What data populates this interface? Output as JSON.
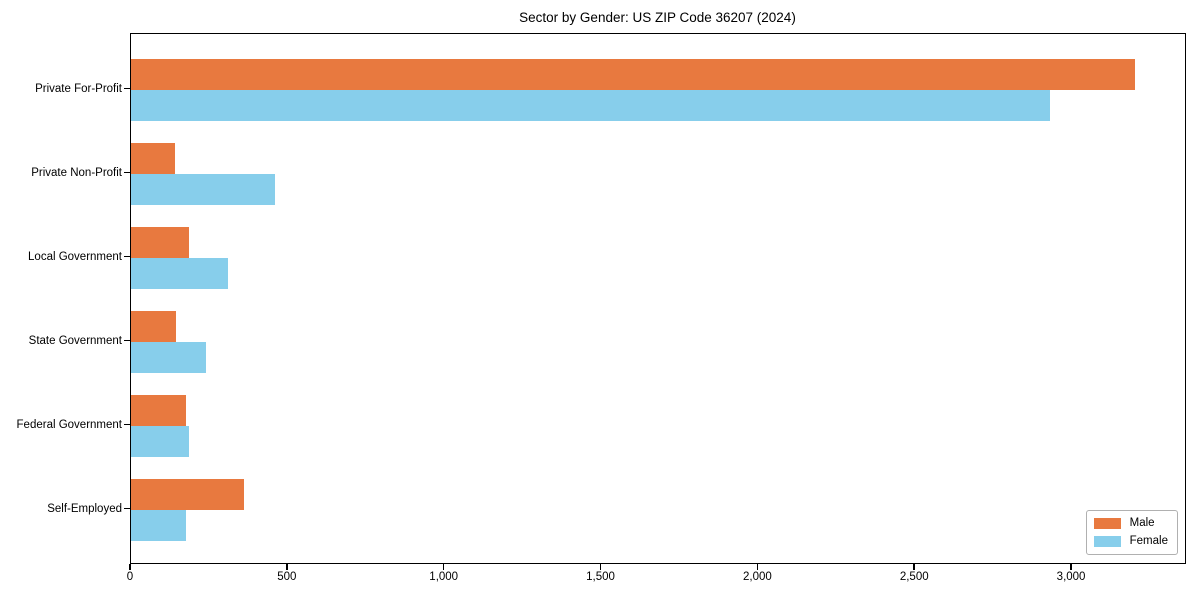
{
  "chart_data": {
    "type": "bar",
    "orientation": "horizontal",
    "title": "Sector by Gender: US ZIP Code 36207 (2024)",
    "categories": [
      "Private For-Profit",
      "Private Non-Profit",
      "Local Government",
      "State Government",
      "Federal Government",
      "Self-Employed"
    ],
    "series": [
      {
        "name": "Male",
        "color": "#e8793f",
        "values": [
          3200,
          140,
          185,
          145,
          175,
          360
        ]
      },
      {
        "name": "Female",
        "color": "#87ceeb",
        "values": [
          2930,
          460,
          310,
          240,
          185,
          175
        ]
      }
    ],
    "xlim": [
      0,
      3360
    ],
    "xticks": [
      0,
      500,
      1000,
      1500,
      2000,
      2500,
      3000
    ],
    "xtick_labels": [
      "0",
      "500",
      "1,000",
      "1,500",
      "2,000",
      "2,500",
      "3,000"
    ],
    "xlabel": "",
    "ylabel": "",
    "grid": false,
    "legend": {
      "position": "lower right",
      "entries": [
        "Male",
        "Female"
      ]
    },
    "colors": {
      "axis": "#000000",
      "text": "#000000",
      "background": "#ffffff",
      "legend_border": "#b0b0b0"
    }
  }
}
